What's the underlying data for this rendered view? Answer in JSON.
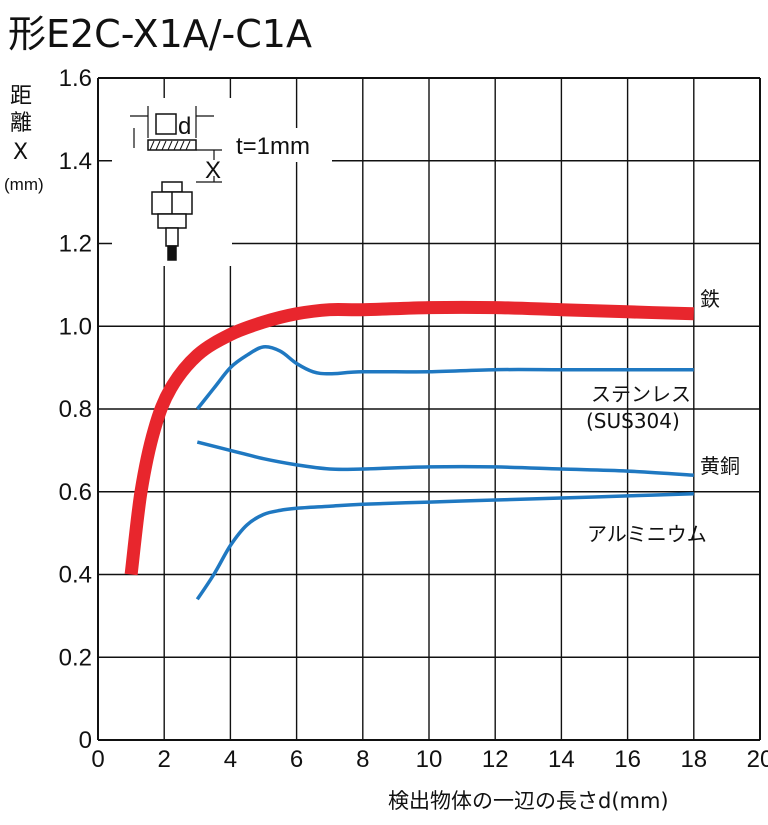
{
  "chart_data": {
    "type": "line",
    "title": "形E2C-X1A/-C1A",
    "ylabel_lines": [
      "距",
      "離",
      "X",
      "(mm)"
    ],
    "xlabel": "検出物体の一辺の長さd(mm)",
    "xlim": [
      0,
      20
    ],
    "ylim": [
      0,
      1.6
    ],
    "x_ticks": [
      "0",
      "2",
      "4",
      "6",
      "8",
      "10",
      "12",
      "14",
      "16",
      "18",
      "20"
    ],
    "y_ticks": [
      "0",
      "0.2",
      "0.4",
      "0.6",
      "0.8",
      "1.0",
      "1.2",
      "1.4",
      "1.6"
    ],
    "grid": true,
    "inset_note": "t=1mm",
    "inset_labels": {
      "d": "d",
      "x": "X"
    },
    "series": [
      {
        "name": "鉄",
        "color": "#e8262d",
        "x": [
          1.0,
          1.3,
          1.7,
          2.2,
          3.0,
          4.0,
          5.0,
          6.0,
          7.0,
          8.0,
          10.0,
          12.0,
          14.0,
          16.0,
          18.0
        ],
        "y": [
          0.4,
          0.6,
          0.75,
          0.85,
          0.93,
          0.98,
          1.01,
          1.03,
          1.04,
          1.04,
          1.045,
          1.045,
          1.04,
          1.035,
          1.03
        ]
      },
      {
        "name_lines": [
          "ステンレス",
          "(SUS304)"
        ],
        "color": "#1f78c1",
        "x": [
          3.0,
          3.5,
          4.0,
          4.5,
          5.0,
          5.5,
          6.0,
          6.5,
          7.0,
          8.0,
          10.0,
          12.0,
          14.0,
          16.0,
          18.0
        ],
        "y": [
          0.8,
          0.85,
          0.9,
          0.93,
          0.95,
          0.94,
          0.91,
          0.89,
          0.885,
          0.89,
          0.89,
          0.895,
          0.895,
          0.895,
          0.895
        ]
      },
      {
        "name": "黄銅",
        "color": "#1f78c1",
        "x": [
          3.0,
          4.0,
          5.0,
          6.0,
          7.0,
          8.0,
          10.0,
          12.0,
          14.0,
          16.0,
          18.0
        ],
        "y": [
          0.72,
          0.7,
          0.68,
          0.665,
          0.655,
          0.655,
          0.66,
          0.66,
          0.655,
          0.65,
          0.64
        ]
      },
      {
        "name": "アルミニウム",
        "color": "#1f78c1",
        "x": [
          3.0,
          3.5,
          4.0,
          4.5,
          5.0,
          5.5,
          6.0,
          7.0,
          8.0,
          10.0,
          12.0,
          14.0,
          16.0,
          18.0
        ],
        "y": [
          0.34,
          0.4,
          0.47,
          0.52,
          0.545,
          0.555,
          0.56,
          0.565,
          0.57,
          0.575,
          0.58,
          0.585,
          0.59,
          0.595
        ]
      }
    ]
  }
}
